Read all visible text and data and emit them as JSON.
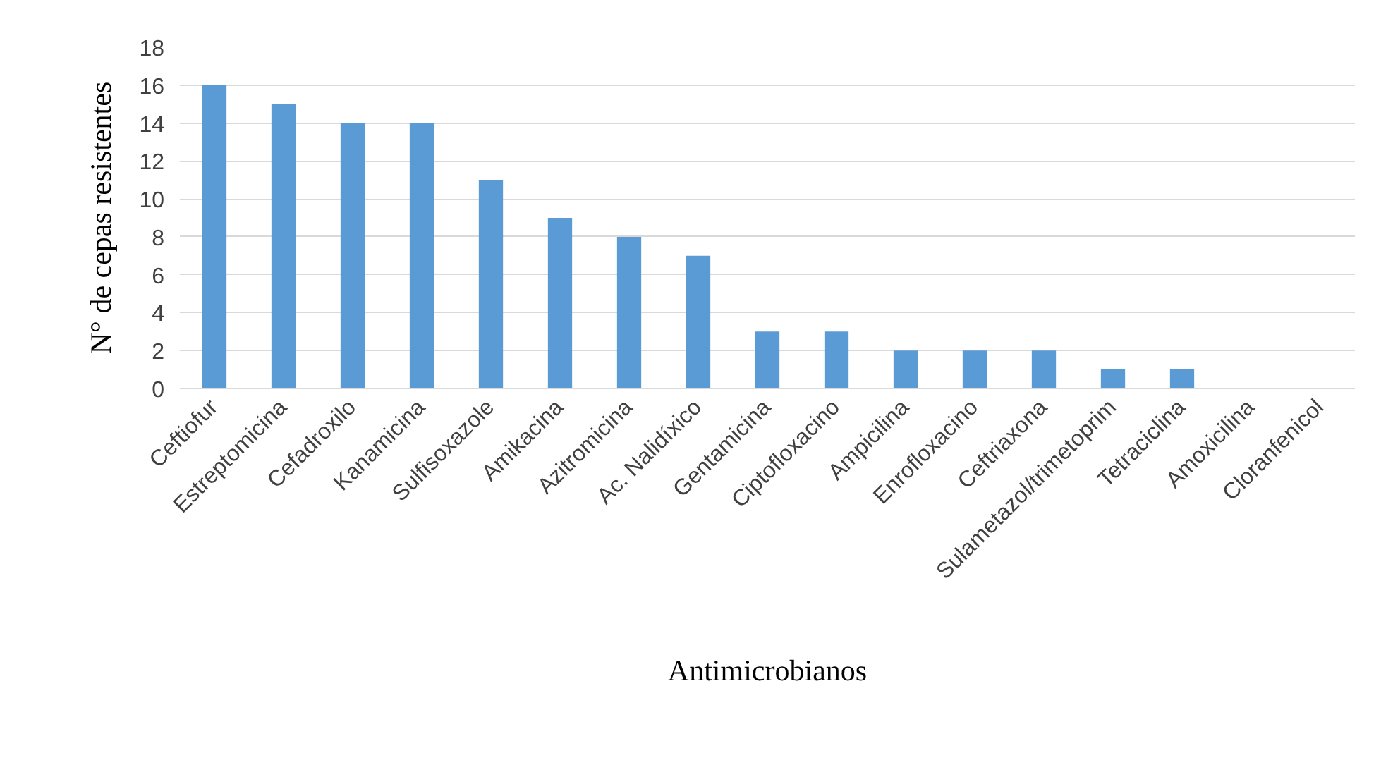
{
  "chart_data": {
    "type": "bar",
    "xlabel": "Antimicrobianos",
    "ylabel": "N° de cepas resistentes",
    "categories": [
      "Ceftiofur",
      "Estreptomicina",
      "Cefadroxilo",
      "Kanamicina",
      "Sulfisoxazole",
      "Amikacina",
      "Azitromicina",
      "Ac. Nalidíxico",
      "Gentamicina",
      "Ciptofloxacino",
      "Ampicilina",
      "Enrofloxacino",
      "Ceftriaxona",
      "Sulametazol/trimetoprim",
      "Tetraciclina",
      "Amoxicilina",
      "Cloranfenicol"
    ],
    "values": [
      16,
      15,
      14,
      14,
      11,
      9,
      8,
      7,
      3,
      3,
      2,
      2,
      2,
      1,
      1,
      0,
      0
    ],
    "color": "#5b9bd5",
    "ylim": [
      0,
      18
    ],
    "yticks": [
      0,
      2,
      4,
      6,
      8,
      10,
      12,
      14,
      16,
      18
    ],
    "grid": "y"
  }
}
